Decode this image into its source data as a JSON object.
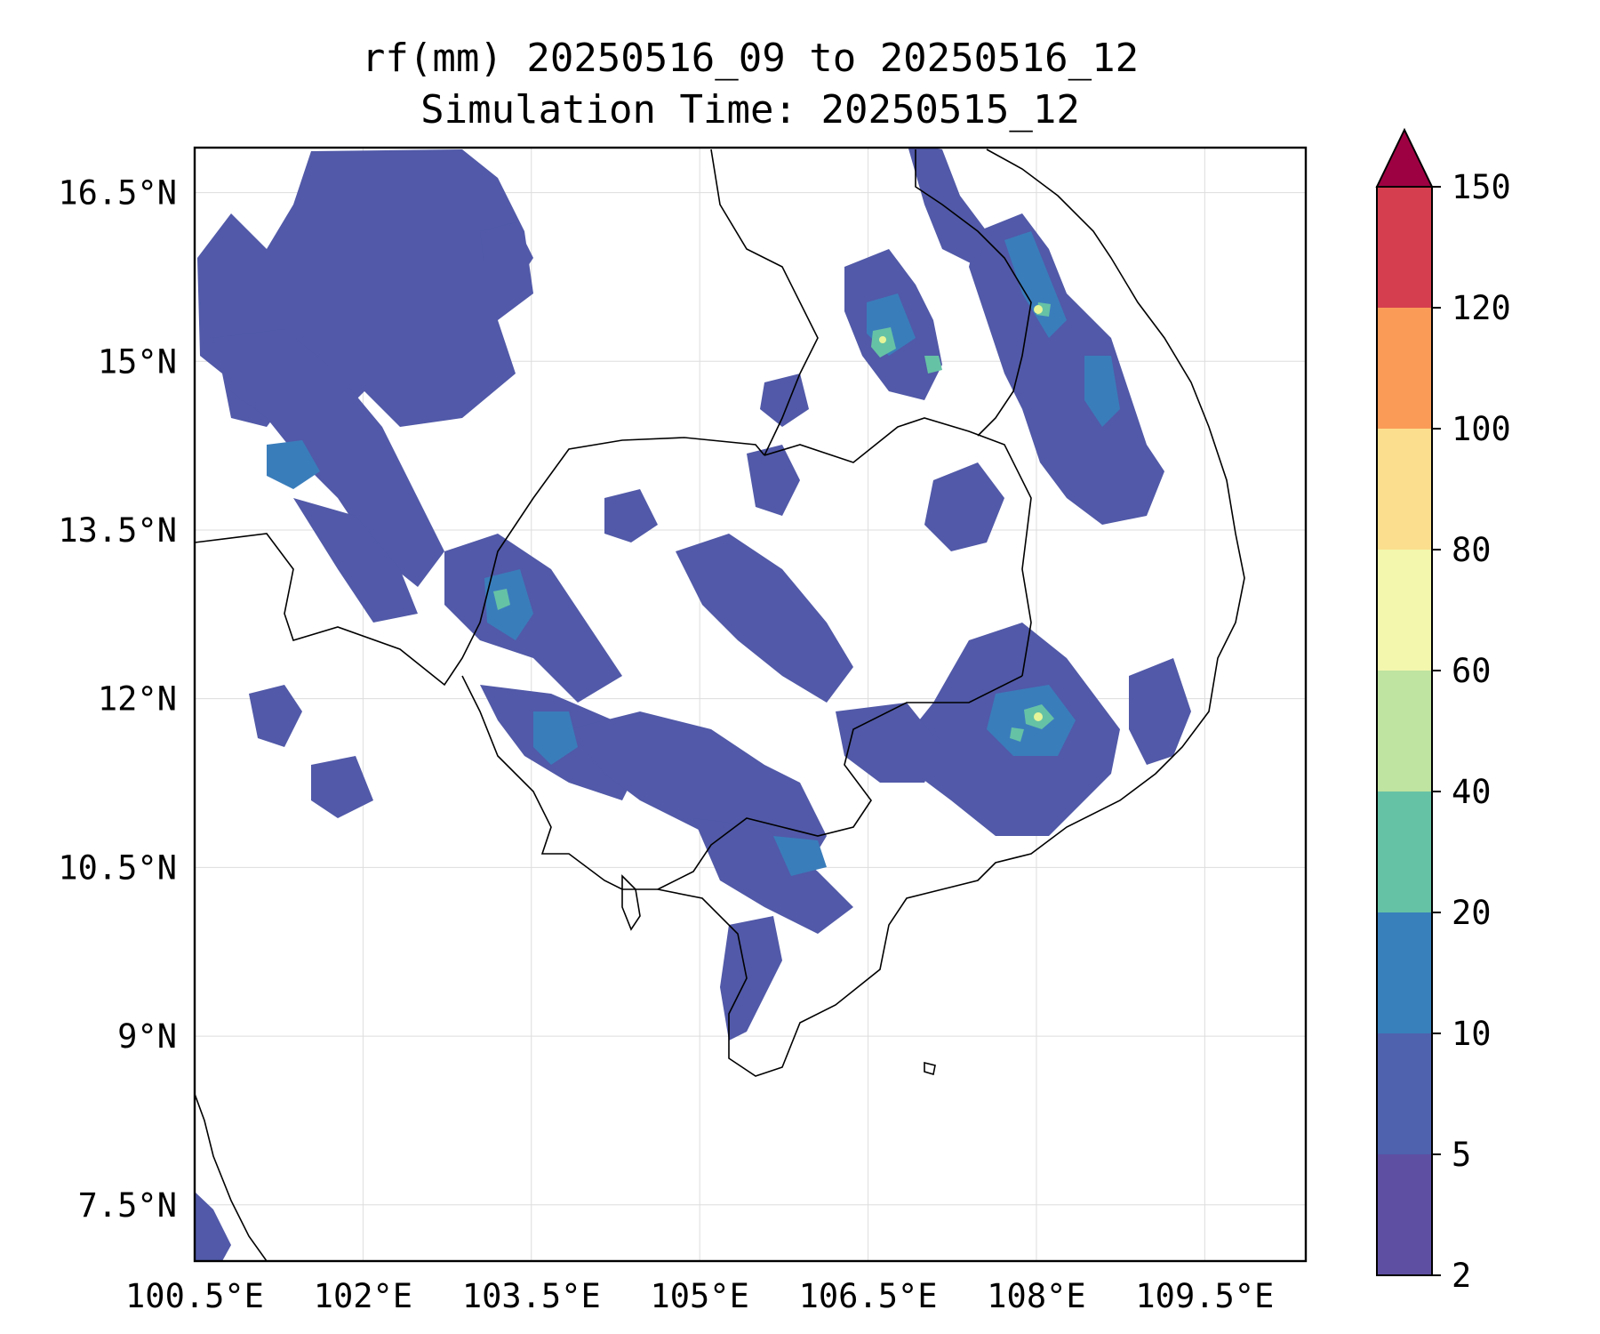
{
  "title_line1": "rf(mm) 20250516_09 to 20250516_12",
  "title_line2": "Simulation Time: 20250515_12",
  "map": {
    "lon_range": [
      100.5,
      110.4
    ],
    "lat_range": [
      7.0,
      16.9
    ],
    "lon_ticks": [
      {
        "value": 100.5,
        "label": "100.5°E"
      },
      {
        "value": 102.0,
        "label": "102°E"
      },
      {
        "value": 103.5,
        "label": "103.5°E"
      },
      {
        "value": 105.0,
        "label": "105°E"
      },
      {
        "value": 106.5,
        "label": "106.5°E"
      },
      {
        "value": 108.0,
        "label": "108°E"
      },
      {
        "value": 109.5,
        "label": "109.5°E"
      }
    ],
    "lat_ticks": [
      {
        "value": 7.5,
        "label": "7.5°N"
      },
      {
        "value": 9.0,
        "label": "9°N"
      },
      {
        "value": 10.5,
        "label": "10.5°N"
      },
      {
        "value": 12.0,
        "label": "12°N"
      },
      {
        "value": 13.5,
        "label": "13.5°N"
      },
      {
        "value": 15.0,
        "label": "15°N"
      },
      {
        "value": 16.5,
        "label": "16.5°N"
      }
    ],
    "grid": true
  },
  "colorbar": {
    "levels": [
      "2",
      "5",
      "10",
      "20",
      "40",
      "60",
      "80",
      "100",
      "120",
      "150"
    ],
    "colors": [
      "#5e4fa2",
      "#4f62ad",
      "#3780bb",
      "#66c2a5",
      "#bfe3a0",
      "#f2f7ad",
      "#fbdf8e",
      "#fa9b58",
      "#d53e4f"
    ],
    "extend_color": "#9e0142",
    "extend": "max"
  },
  "colors": {
    "rain_light": "#5159a8",
    "rain_mid": "#3a7dbb",
    "rain_high": "#66c2a5",
    "rain_peak": "#e6f598",
    "coast": "#000000"
  }
}
